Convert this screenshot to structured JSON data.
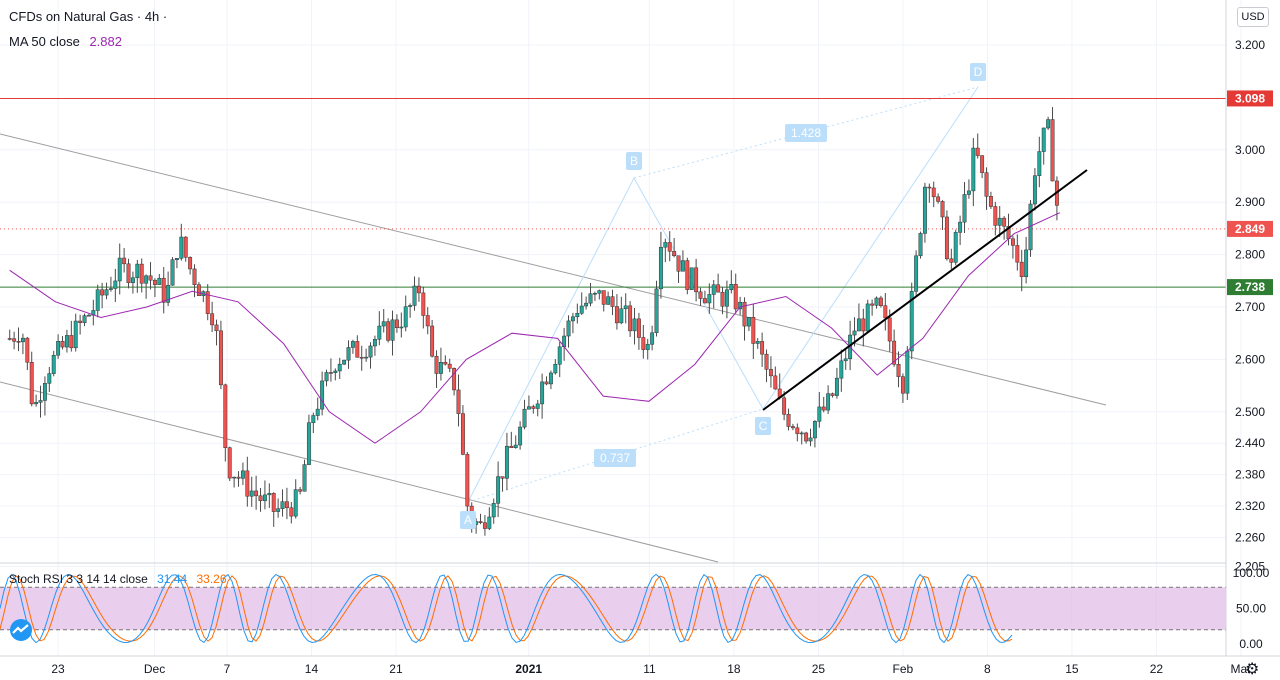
{
  "header": {
    "title": "CFDs on Natural Gas · 4h ·",
    "ma_label": "MA 50 close",
    "ma_value": "2.882",
    "ma_color": "#9c27b0",
    "currency": "USD"
  },
  "stoch": {
    "label": "Stoch RSI 3 3 14 14 close",
    "k_value": "31.44",
    "d_value": "33.26",
    "k_color": "#2196f3",
    "d_color": "#ff6d00",
    "band_color": "#e1bee7",
    "ticks": [
      "100.00",
      "50.00",
      "0.00"
    ]
  },
  "price_axis": {
    "ticks": [
      "3.200",
      "3.098",
      "3.000",
      "2.900",
      "2.849",
      "2.800",
      "2.738",
      "2.700",
      "2.600",
      "2.500",
      "2.440",
      "2.380",
      "2.320",
      "2.260",
      "2.205"
    ]
  },
  "time_axis": {
    "labels": [
      "23",
      "Dec",
      "7",
      "14",
      "21",
      "2021",
      "11",
      "18",
      "25",
      "Feb",
      "8",
      "15",
      "22",
      "Mar"
    ]
  },
  "levels": [
    {
      "name": "resistance",
      "value": "3.098",
      "color": "#e53935"
    },
    {
      "name": "last-price",
      "value": "2.849",
      "color": "#ef5350"
    },
    {
      "name": "support",
      "value": "2.738",
      "color": "#2e7d32"
    }
  ],
  "pattern": {
    "points": [
      "A",
      "B",
      "C",
      "D"
    ],
    "ratios": [
      "1.428",
      "0.737"
    ]
  },
  "colors": {
    "up": "#26a69a",
    "down": "#ef5350",
    "grid": "#f0f3fa",
    "trend": "#000000",
    "channel": "#9e9e9e",
    "pattern": "#bbdefb"
  },
  "chart_data": {
    "type": "candlestick",
    "instrument": "CFDs on Natural Gas",
    "timeframe": "4h",
    "y_range": [
      2.18,
      3.27
    ],
    "x_range": [
      "2020-11-18",
      "2021-03-04"
    ],
    "ohlc": [
      {
        "date": "2020-11-19",
        "close": 2.64
      },
      {
        "date": "2020-11-20",
        "close": 2.66
      },
      {
        "date": "2020-11-21",
        "close": 2.5
      },
      {
        "date": "2020-11-22",
        "close": 2.58
      },
      {
        "date": "2020-11-24",
        "close": 2.64
      },
      {
        "date": "2020-11-26",
        "close": 2.7
      },
      {
        "date": "2020-11-28",
        "close": 2.77
      },
      {
        "date": "2020-11-30",
        "close": 2.77
      },
      {
        "date": "2020-12-02",
        "close": 2.72
      },
      {
        "date": "2020-12-03",
        "close": 2.83
      },
      {
        "date": "2020-12-04",
        "close": 2.77
      },
      {
        "date": "2020-12-06",
        "close": 2.68
      },
      {
        "date": "2020-12-07",
        "close": 2.4
      },
      {
        "date": "2020-12-09",
        "close": 2.35
      },
      {
        "date": "2020-12-11",
        "close": 2.31
      },
      {
        "date": "2020-12-13",
        "close": 2.33
      },
      {
        "date": "2020-12-14",
        "close": 2.49
      },
      {
        "date": "2020-12-16",
        "close": 2.6
      },
      {
        "date": "2020-12-18",
        "close": 2.62
      },
      {
        "date": "2020-12-20",
        "close": 2.65
      },
      {
        "date": "2020-12-22",
        "close": 2.69
      },
      {
        "date": "2020-12-23",
        "close": 2.74
      },
      {
        "date": "2020-12-24",
        "close": 2.6
      },
      {
        "date": "2020-12-26",
        "close": 2.55
      },
      {
        "date": "2020-12-27",
        "close": 2.3
      },
      {
        "date": "2020-12-28",
        "close": 2.28
      },
      {
        "date": "2020-12-30",
        "close": 2.4
      },
      {
        "date": "2021-01-01",
        "close": 2.5
      },
      {
        "date": "2021-01-03",
        "close": 2.6
      },
      {
        "date": "2021-01-05",
        "close": 2.7
      },
      {
        "date": "2021-01-07",
        "close": 2.72
      },
      {
        "date": "2021-01-09",
        "close": 2.68
      },
      {
        "date": "2021-01-11",
        "close": 2.62
      },
      {
        "date": "2021-01-12",
        "close": 2.85
      },
      {
        "date": "2021-01-14",
        "close": 2.76
      },
      {
        "date": "2021-01-16",
        "close": 2.72
      },
      {
        "date": "2021-01-18",
        "close": 2.72
      },
      {
        "date": "2021-01-20",
        "close": 2.62
      },
      {
        "date": "2021-01-22",
        "close": 2.5
      },
      {
        "date": "2021-01-24",
        "close": 2.46
      },
      {
        "date": "2021-01-26",
        "close": 2.52
      },
      {
        "date": "2021-01-28",
        "close": 2.66
      },
      {
        "date": "2021-01-30",
        "close": 2.7
      },
      {
        "date": "2021-02-01",
        "close": 2.56
      },
      {
        "date": "2021-02-03",
        "close": 2.97
      },
      {
        "date": "2021-02-05",
        "close": 2.78
      },
      {
        "date": "2021-02-07",
        "close": 3.0
      },
      {
        "date": "2021-02-08",
        "close": 2.9
      },
      {
        "date": "2021-02-10",
        "close": 2.82
      },
      {
        "date": "2021-02-11",
        "close": 2.77
      },
      {
        "date": "2021-02-12",
        "close": 2.98
      },
      {
        "date": "2021-02-13",
        "close": 3.04
      },
      {
        "date": "2021-02-14",
        "close": 2.85
      }
    ],
    "ma50": [
      2.77,
      2.71,
      2.68,
      2.7,
      2.73,
      2.71,
      2.63,
      2.5,
      2.44,
      2.5,
      2.6,
      2.65,
      2.64,
      2.53,
      2.52,
      2.59,
      2.7,
      2.72,
      2.66,
      2.57,
      2.64,
      2.76,
      2.84,
      2.88
    ]
  }
}
